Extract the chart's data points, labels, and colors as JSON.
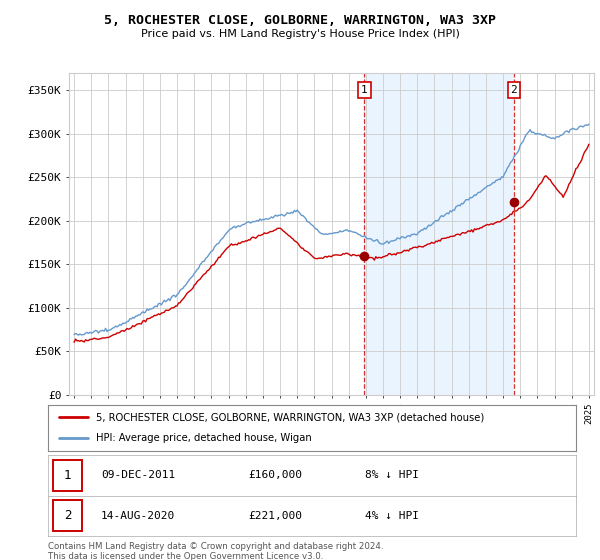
{
  "title_line1": "5, ROCHESTER CLOSE, GOLBORNE, WARRINGTON, WA3 3XP",
  "title_line2": "Price paid vs. HM Land Registry's House Price Index (HPI)",
  "ylabel_ticks": [
    "£0",
    "£50K",
    "£100K",
    "£150K",
    "£200K",
    "£250K",
    "£300K",
    "£350K"
  ],
  "ytick_values": [
    0,
    50000,
    100000,
    150000,
    200000,
    250000,
    300000,
    350000
  ],
  "ylim": [
    0,
    370000
  ],
  "xlim_start": 1994.7,
  "xlim_end": 2025.3,
  "plot_bg_color": "#ffffff",
  "fig_bg_color": "#ffffff",
  "hpi_color": "#6699cc",
  "hpi_shade_color": "#ddeeff",
  "price_color": "#cc0000",
  "sale1_x": 2011.92,
  "sale1_y": 160000,
  "sale2_x": 2020.62,
  "sale2_y": 221000,
  "marker_color": "#990000",
  "annotation1_label": "1",
  "annotation2_label": "2",
  "legend_line1": "5, ROCHESTER CLOSE, GOLBORNE, WARRINGTON, WA3 3XP (detached house)",
  "legend_line2": "HPI: Average price, detached house, Wigan",
  "table_row1_num": "1",
  "table_row1_date": "09-DEC-2011",
  "table_row1_price": "£160,000",
  "table_row1_hpi": "8% ↓ HPI",
  "table_row2_num": "2",
  "table_row2_date": "14-AUG-2020",
  "table_row2_price": "£221,000",
  "table_row2_hpi": "4% ↓ HPI",
  "footer": "Contains HM Land Registry data © Crown copyright and database right 2024.\nThis data is licensed under the Open Government Licence v3.0.",
  "grid_color": "#cccccc",
  "annotation_box_color": "#cc0000",
  "shade_between": true
}
